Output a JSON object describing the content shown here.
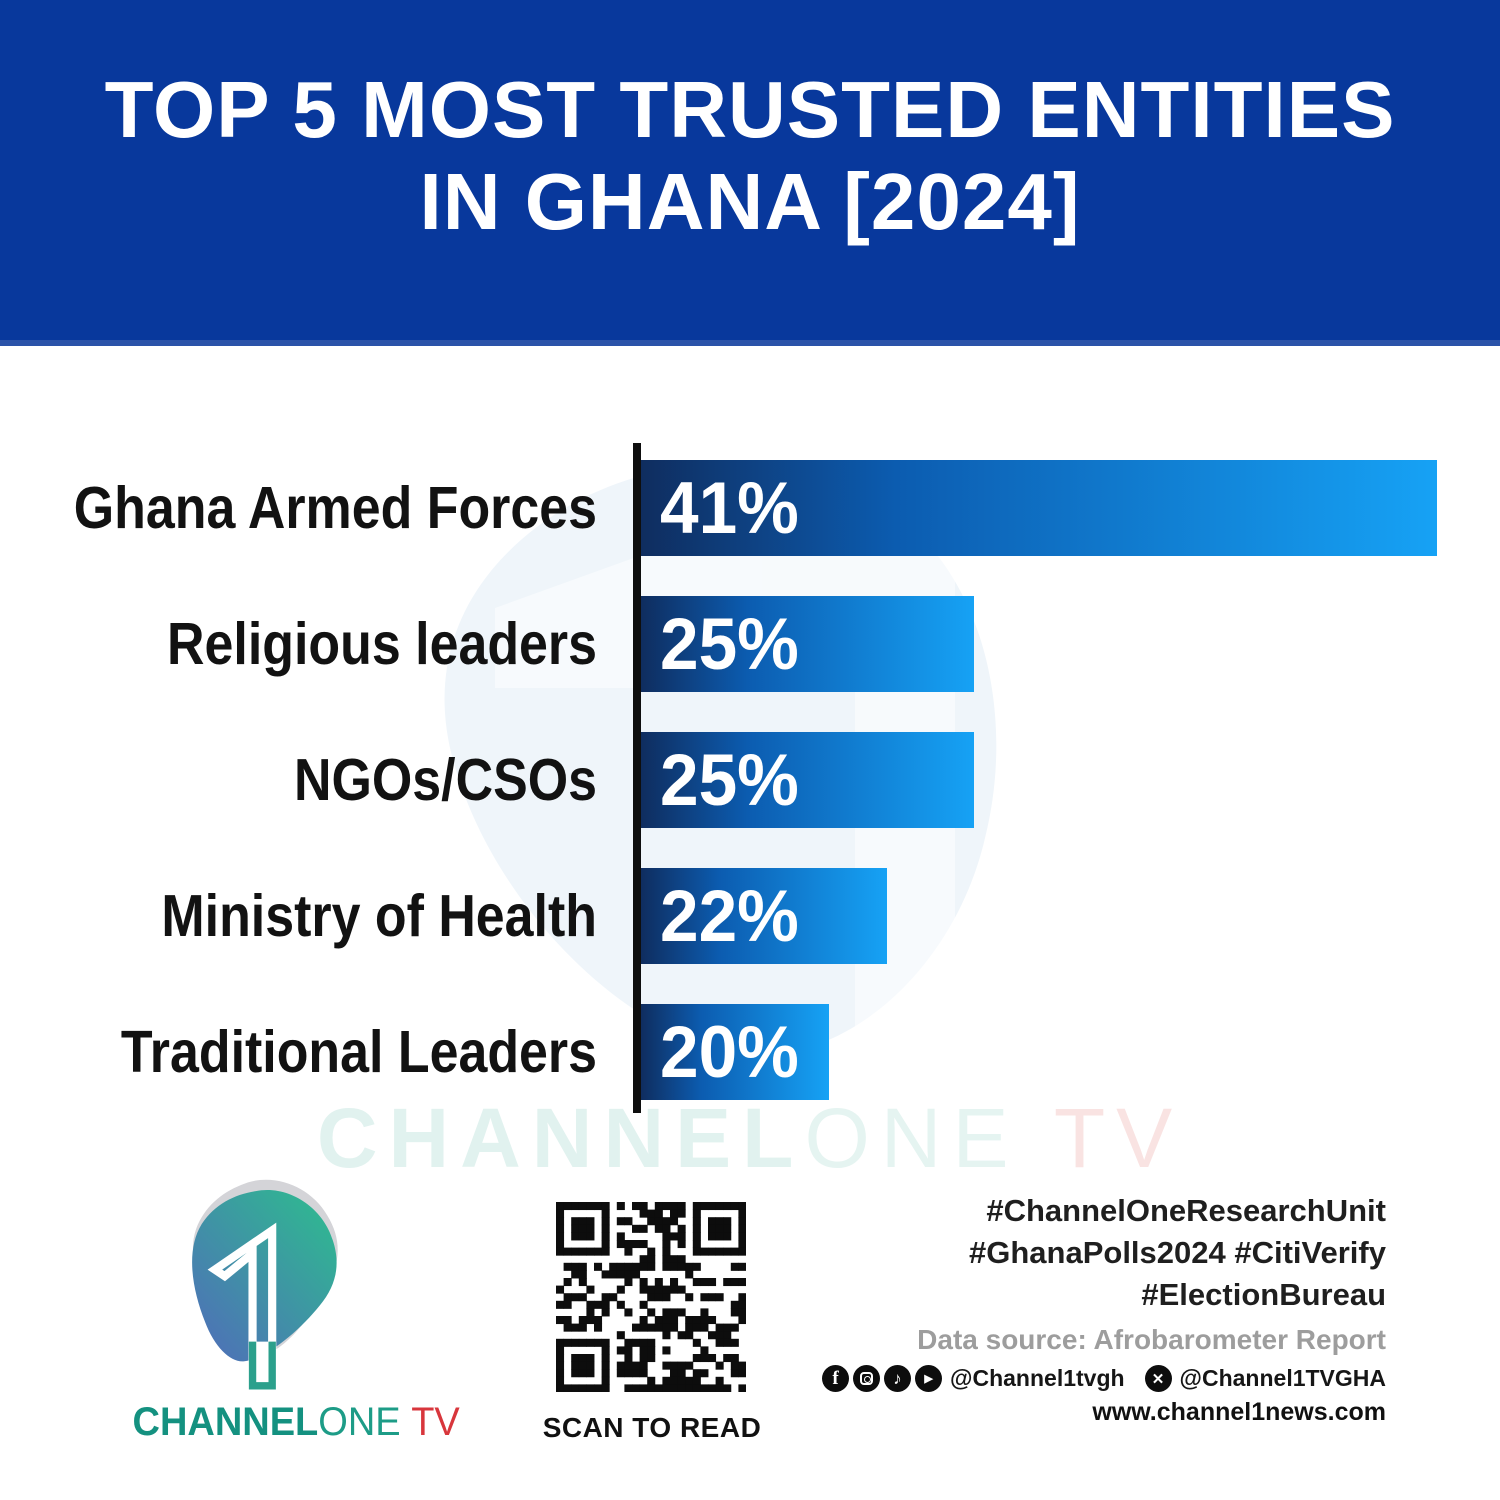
{
  "header": {
    "title_line1": "TOP 5 MOST TRUSTED ENTITIES",
    "title_line2": "IN GHANA [2024]"
  },
  "chart_data": {
    "type": "bar",
    "orientation": "horizontal",
    "title": "TOP 5 MOST TRUSTED ENTITIES IN GHANA [2024]",
    "categories": [
      "Ghana Armed Forces",
      "Religious leaders",
      "NGOs/CSOs",
      "Ministry of Health",
      "Traditional Leaders"
    ],
    "values": [
      41,
      25,
      25,
      22,
      20
    ],
    "value_suffix": "%",
    "xlim": [
      13.5,
      41.5
    ],
    "bar_color_left": "#0f2d5f",
    "bar_color_right": "#16a2f5",
    "grid": false,
    "legend": false
  },
  "watermark": {
    "channel": "CHANNEL",
    "one": "ONE",
    "tv": "TV"
  },
  "footer": {
    "logo": {
      "digit": "1",
      "channel": "CHANNEL",
      "one": "ONE",
      "tv": "TV"
    },
    "qr_caption": "SCAN TO READ",
    "hashtags": [
      "#ChannelOneResearchUnit",
      "#GhanaPolls2024 #CitiVerify",
      "#ElectionBureau"
    ],
    "data_source": "Data source: Afrobarometer Report",
    "social": {
      "handle_main": "@Channel1tvgh",
      "handle_x": "@Channel1TVGHA"
    },
    "website": "www.channel1news.com"
  }
}
